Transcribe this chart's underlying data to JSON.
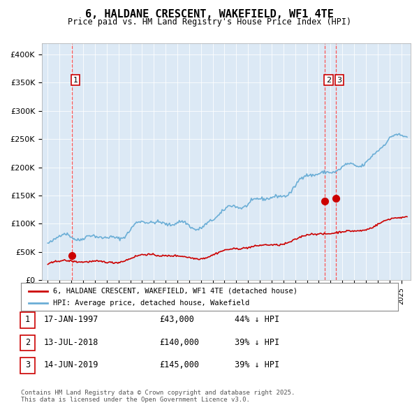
{
  "title": "6, HALDANE CRESCENT, WAKEFIELD, WF1 4TE",
  "subtitle": "Price paid vs. HM Land Registry's House Price Index (HPI)",
  "legend_line1": "6, HALDANE CRESCENT, WAKEFIELD, WF1 4TE (detached house)",
  "legend_line2": "HPI: Average price, detached house, Wakefield",
  "sale_dates": [
    1997.04,
    2018.53,
    2019.45
  ],
  "sale_prices": [
    43000,
    140000,
    145000
  ],
  "sale_labels": [
    "1",
    "2",
    "3"
  ],
  "table_data": [
    [
      "1",
      "17-JAN-1997",
      "£43,000",
      "44% ↓ HPI"
    ],
    [
      "2",
      "13-JUL-2018",
      "£140,000",
      "39% ↓ HPI"
    ],
    [
      "3",
      "14-JUN-2019",
      "£145,000",
      "39% ↓ HPI"
    ]
  ],
  "footer": "Contains HM Land Registry data © Crown copyright and database right 2025.\nThis data is licensed under the Open Government Licence v3.0.",
  "hpi_color": "#6baed6",
  "sale_color": "#cc0000",
  "dashed_color": "#ff4444",
  "plot_bg_color": "#dce9f5",
  "ylim": [
    0,
    420000
  ],
  "xlim_start": 1994.5,
  "xlim_end": 2025.8
}
